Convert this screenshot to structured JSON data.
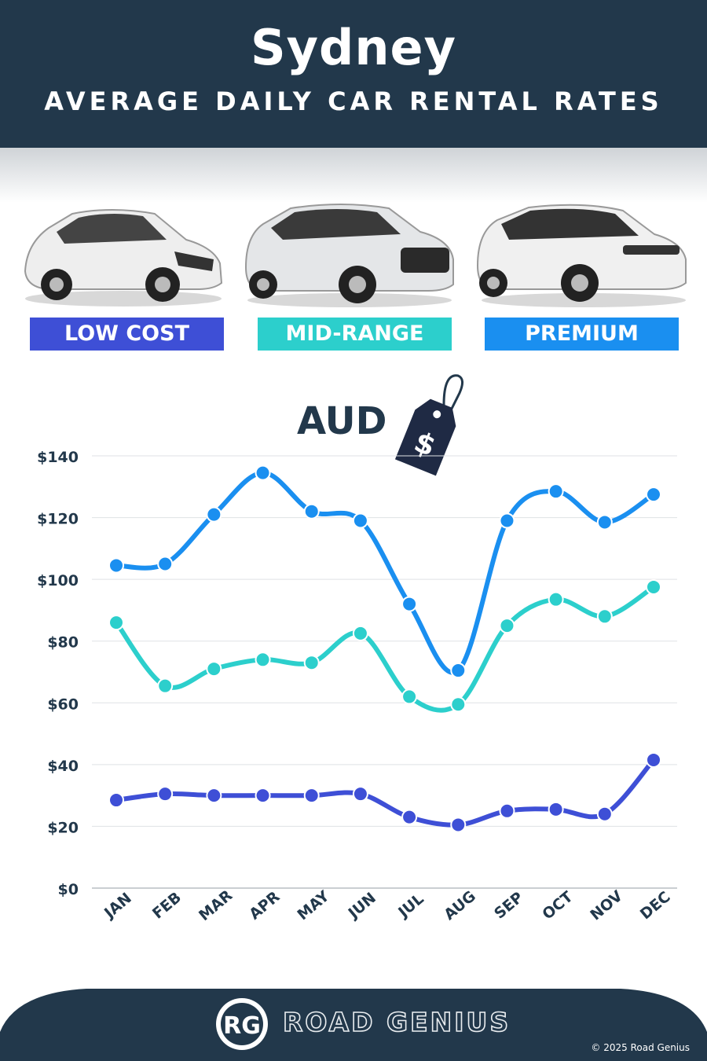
{
  "header": {
    "city": "Sydney",
    "subtitle": "AVERAGE DAILY CAR RENTAL RATES"
  },
  "categories": {
    "low": "LOW COST",
    "mid": "MID-RANGE",
    "premium": "PREMIUM"
  },
  "currency": "AUD",
  "tag_symbol": "$",
  "brand": {
    "logo_initials": "RG",
    "name": "ROAD GENIUS"
  },
  "copyright": "© 2025 Road Genius",
  "colors": {
    "header": "#22384b",
    "low": "#3e4fd6",
    "mid": "#2ccfcc",
    "premium": "#1a8ff0"
  },
  "chart_data": {
    "type": "line",
    "categories": [
      "JAN",
      "FEB",
      "MAR",
      "APR",
      "MAY",
      "JUN",
      "JUL",
      "AUG",
      "SEP",
      "OCT",
      "NOV",
      "DEC"
    ],
    "series": [
      {
        "name": "PREMIUM",
        "color": "#1a8ff0",
        "values": [
          104.5,
          105,
          121,
          134.5,
          122,
          119,
          92,
          70.5,
          119,
          128.5,
          118.5,
          127.5
        ]
      },
      {
        "name": "MID-RANGE",
        "color": "#2ccfcc",
        "values": [
          86,
          65.5,
          71,
          74,
          73,
          82.5,
          62,
          59.5,
          85,
          93.5,
          88,
          97.5
        ]
      },
      {
        "name": "LOW COST",
        "color": "#3e4fd6",
        "values": [
          28.5,
          30.5,
          30,
          30,
          30,
          30.5,
          23,
          20.5,
          25,
          25.5,
          24,
          41.5
        ]
      }
    ],
    "y_ticks": [
      "$0",
      "$20",
      "$40",
      "$60",
      "$80",
      "$100",
      "$120",
      "$140"
    ],
    "ylim": [
      0,
      140
    ],
    "grid": true
  }
}
